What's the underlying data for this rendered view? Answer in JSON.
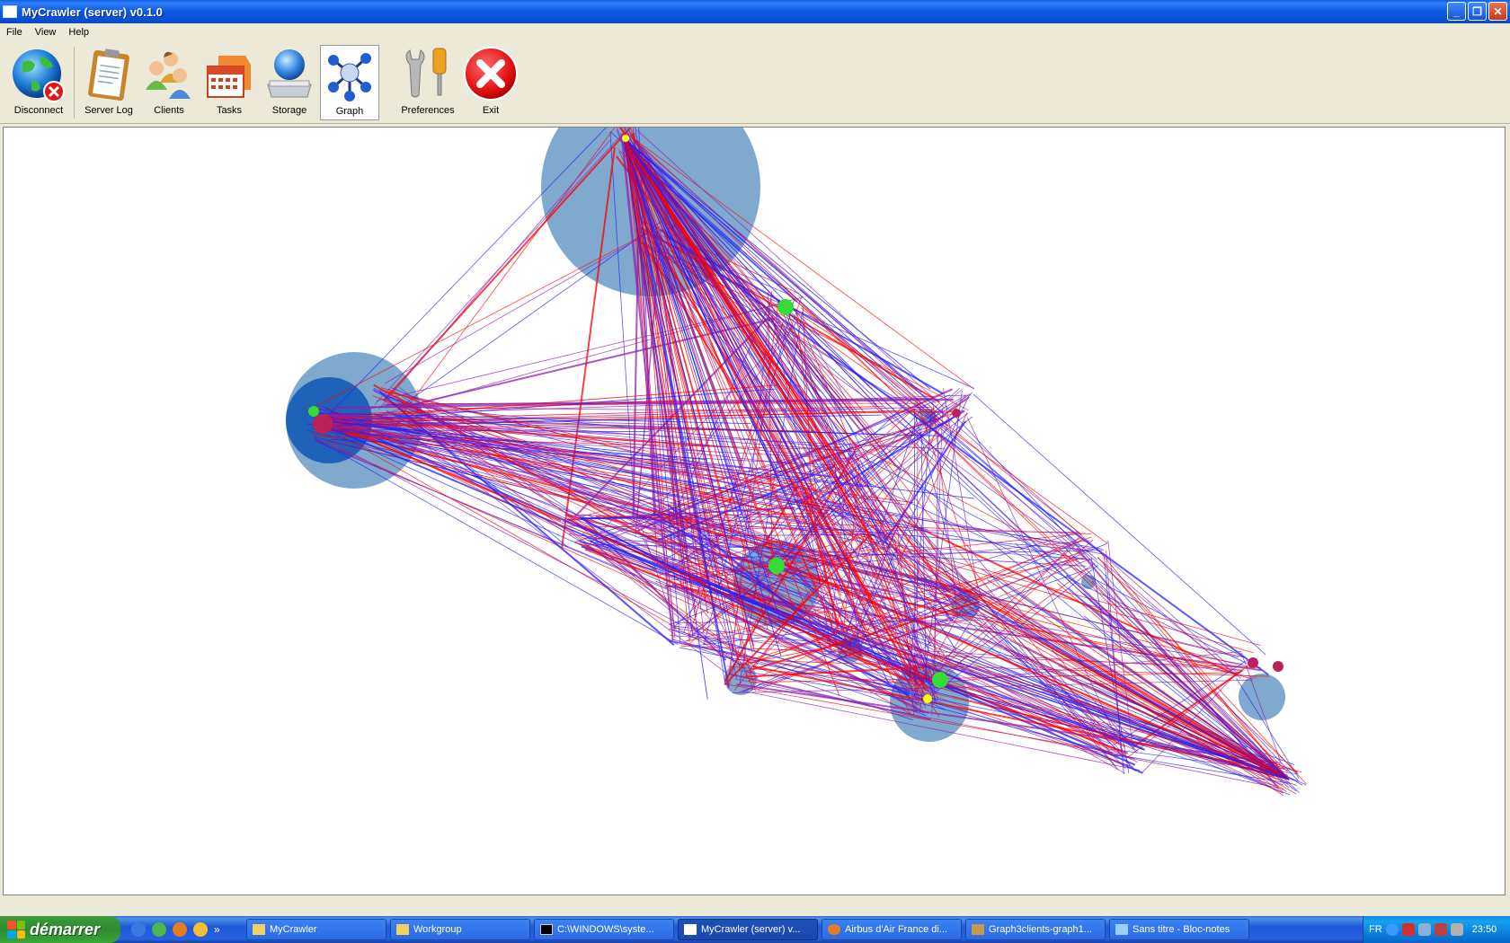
{
  "window": {
    "title": "MyCrawler (server) v0.1.0",
    "minimize_glyph": "_",
    "maximize_glyph": "❐",
    "close_glyph": "✕"
  },
  "menu": [
    "File",
    "View",
    "Help"
  ],
  "toolbar": {
    "items": [
      {
        "label": "Disconnect",
        "icon": "globe-disconnect-icon"
      },
      {
        "label": "Server Log",
        "icon": "clipboard-icon"
      },
      {
        "label": "Clients",
        "icon": "users-icon"
      },
      {
        "label": "Tasks",
        "icon": "calendar-icon"
      },
      {
        "label": "Storage",
        "icon": "storage-globe-icon"
      },
      {
        "label": "Graph",
        "icon": "molecule-graph-icon",
        "active": true
      },
      {
        "label": "Preferences",
        "icon": "tools-icon"
      },
      {
        "label": "Exit",
        "icon": "exit-icon"
      }
    ]
  },
  "graph": {
    "edge_colors": [
      "#ff0000",
      "#2020ff",
      "#9020b0"
    ],
    "node_halo_color": "#7fa9cf",
    "node_core_colors": [
      "#ffff00",
      "#33dd33",
      "#9955ee",
      "#1f63b8"
    ]
  },
  "taskbar": {
    "start_label": "démarrer",
    "tasks": [
      {
        "label": "MyCrawler",
        "icon": "folder-icon"
      },
      {
        "label": "Workgroup",
        "icon": "folder-icon"
      },
      {
        "label": "C:\\WINDOWS\\syste...",
        "icon": "console-icon"
      },
      {
        "label": "MyCrawler (server) v...",
        "icon": "window-icon",
        "active": true
      },
      {
        "label": "Airbus d'Air France di...",
        "icon": "firefox-icon"
      },
      {
        "label": "Graph3clients-graph1...",
        "icon": "image-icon"
      },
      {
        "label": "Sans titre - Bloc-notes",
        "icon": "notepad-icon"
      }
    ],
    "tray": {
      "language": "FR",
      "time": "23:50"
    }
  }
}
